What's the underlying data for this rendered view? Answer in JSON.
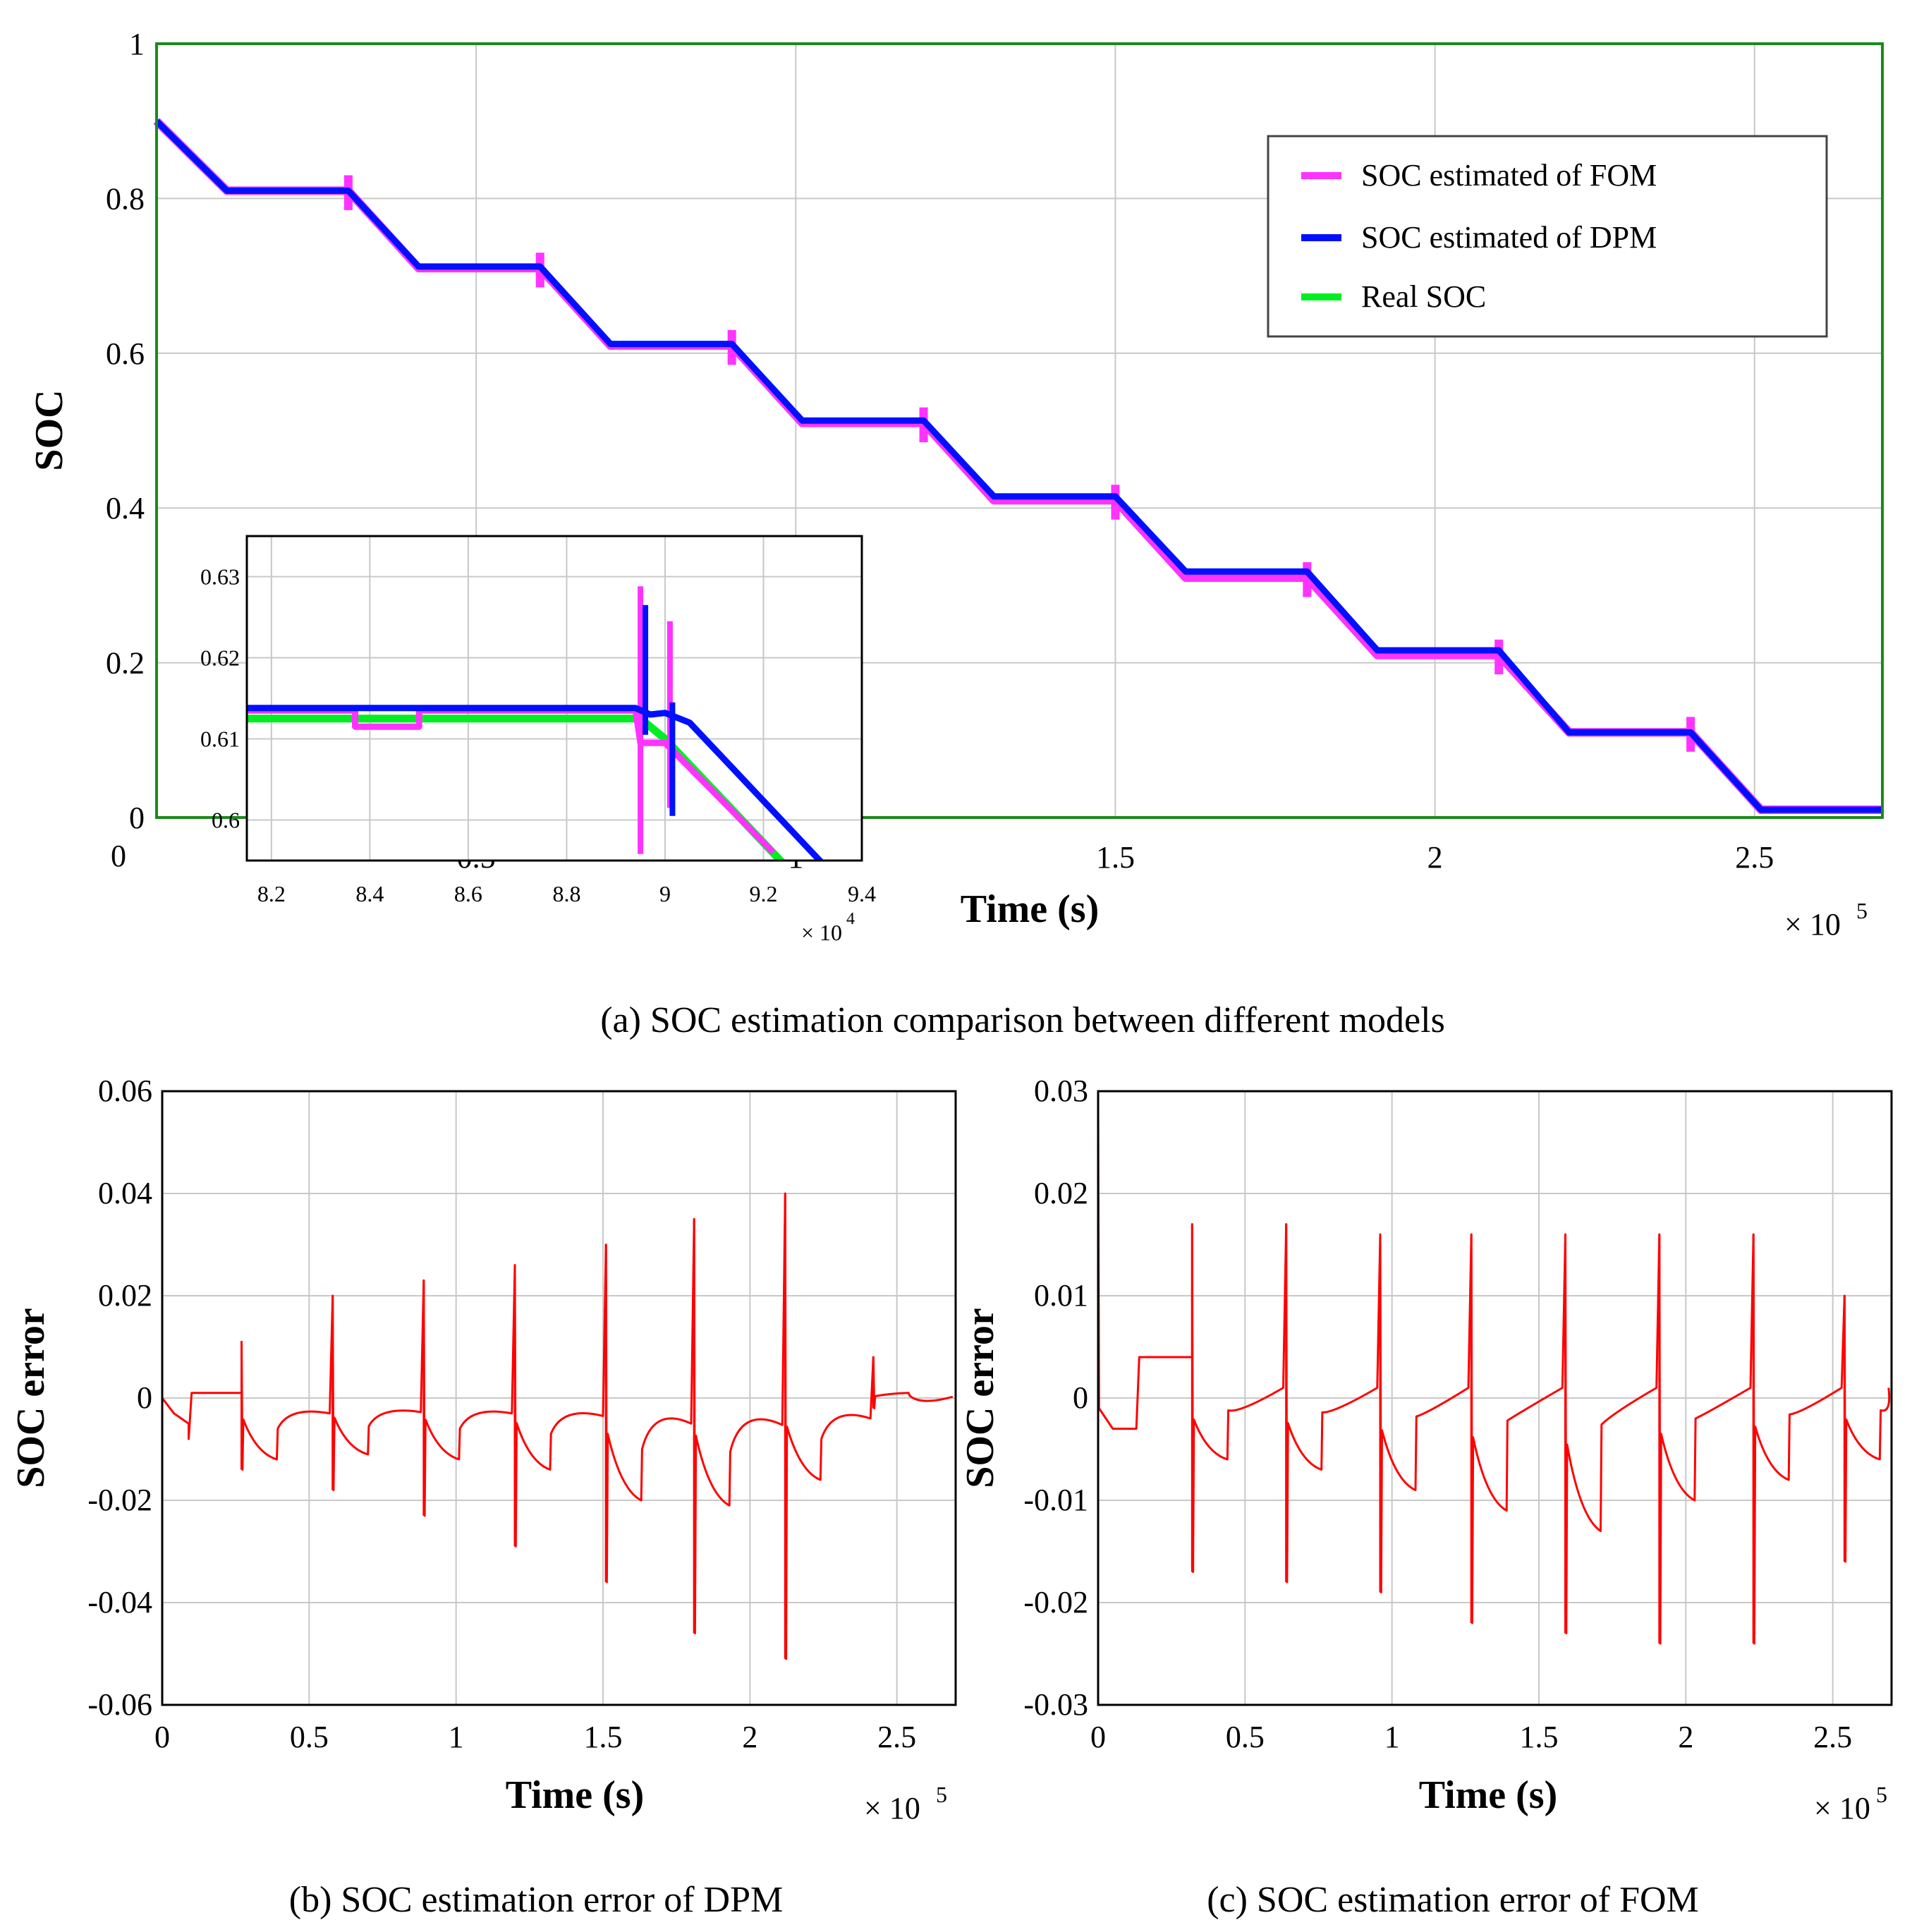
{
  "colors": {
    "fom": "#ff33ff",
    "dpm": "#0010ff",
    "real": "#00ee22",
    "error": "#ff0000"
  },
  "chart_data": [
    {
      "id": "a",
      "type": "line",
      "caption": "(a) SOC estimation comparison between different models",
      "xlabel": "Time (s)",
      "ylabel": "SOC",
      "x_multiplier": "× 10",
      "x_exponent": "5",
      "xlim": [
        0,
        2.7
      ],
      "ylim": [
        0,
        1
      ],
      "xticks": [
        "0.5",
        "1",
        "1.5",
        "2",
        "2.5"
      ],
      "x_origin_label": "0",
      "yticks": [
        "0",
        "0.2",
        "0.4",
        "0.6",
        "0.8",
        "1"
      ],
      "legend": [
        "SOC estimated of FOM",
        "SOC estimated of DPM",
        "Real SOC"
      ],
      "series": [
        {
          "name": "Real SOC",
          "x": [
            0,
            0.11,
            0.3,
            0.41,
            0.6,
            0.71,
            0.9,
            1.01,
            1.2,
            1.31,
            1.5,
            1.61,
            1.8,
            1.91,
            2.1,
            2.21,
            2.4,
            2.51,
            2.7
          ],
          "y": [
            0.9,
            0.81,
            0.81,
            0.71,
            0.71,
            0.61,
            0.61,
            0.51,
            0.51,
            0.41,
            0.41,
            0.31,
            0.31,
            0.21,
            0.21,
            0.11,
            0.11,
            0.01,
            0.01
          ]
        },
        {
          "name": "SOC estimated of FOM",
          "x": [
            0,
            0.11,
            0.3,
            0.41,
            0.6,
            0.71,
            0.9,
            1.01,
            1.2,
            1.31,
            1.5,
            1.61,
            1.8,
            1.91,
            2.1,
            2.21,
            2.4,
            2.51,
            2.7
          ],
          "y": [
            0.9,
            0.81,
            0.81,
            0.71,
            0.71,
            0.61,
            0.61,
            0.51,
            0.51,
            0.41,
            0.41,
            0.31,
            0.31,
            0.21,
            0.21,
            0.11,
            0.11,
            0.01,
            0.01
          ]
        },
        {
          "name": "SOC estimated of DPM",
          "x": [
            0,
            0.11,
            0.3,
            0.41,
            0.6,
            0.71,
            0.9,
            1.01,
            1.2,
            1.31,
            1.5,
            1.61,
            1.8,
            1.91,
            2.1,
            2.21,
            2.4,
            2.51,
            2.7
          ],
          "y": [
            0.9,
            0.81,
            0.81,
            0.712,
            0.712,
            0.612,
            0.612,
            0.513,
            0.513,
            0.415,
            0.415,
            0.318,
            0.318,
            0.216,
            0.216,
            0.11,
            0.11,
            0.01,
            0.01
          ]
        }
      ],
      "inset": {
        "xlim": [
          8.15,
          9.4
        ],
        "ylim": [
          0.595,
          0.635
        ],
        "xticks": [
          "8.2",
          "8.4",
          "8.6",
          "8.8",
          "9",
          "9.2",
          "9.4"
        ],
        "yticks": [
          "0.6",
          "0.61",
          "0.62",
          "0.63"
        ],
        "x_multiplier": "× 10",
        "x_exponent": "4",
        "series": [
          {
            "name": "Real SOC",
            "x": [
              8.15,
              8.95,
              9.0,
              9.25
            ],
            "y": [
              0.6125,
              0.6125,
              0.61,
              0.594
            ]
          },
          {
            "name": "SOC estimated of FOM",
            "x": [
              8.15,
              8.37,
              8.37,
              8.5,
              8.5,
              8.94,
              8.95,
              9.0,
              9.22
            ],
            "y": [
              0.6135,
              0.6135,
              0.6115,
              0.6115,
              0.6135,
              0.6135,
              0.6095,
              0.6095,
              0.596
            ]
          },
          {
            "name": "SOC estimated of DPM",
            "x": [
              8.15,
              8.94,
              8.97,
              9.0,
              9.05,
              9.33
            ],
            "y": [
              0.6138,
              0.6138,
              0.613,
              0.6132,
              0.612,
              0.594
            ]
          }
        ]
      }
    },
    {
      "id": "b",
      "type": "line",
      "caption": "(b) SOC estimation error of DPM",
      "xlabel": "Time (s)",
      "ylabel": "SOC error",
      "x_multiplier": "× 10",
      "x_exponent": "5",
      "xlim": [
        0,
        2.7
      ],
      "ylim": [
        -0.06,
        0.06
      ],
      "xticks": [
        "0",
        "0.5",
        "1",
        "1.5",
        "2",
        "2.5"
      ],
      "yticks": [
        "-0.06",
        "-0.04",
        "-0.02",
        "0",
        "0.02",
        "0.04",
        "0.06"
      ],
      "series": [
        {
          "name": "SOC error",
          "spikes": [
            {
              "x": 0.27,
              "top": 0.011,
              "bottom": -0.014,
              "end": -0.012
            },
            {
              "x": 0.58,
              "top": 0.02,
              "bottom": -0.018,
              "end": -0.011
            },
            {
              "x": 0.89,
              "top": 0.023,
              "bottom": -0.023,
              "end": -0.012
            },
            {
              "x": 1.2,
              "top": 0.026,
              "bottom": -0.029,
              "end": -0.014
            },
            {
              "x": 1.51,
              "top": 0.03,
              "bottom": -0.036,
              "end": -0.02
            },
            {
              "x": 1.81,
              "top": 0.035,
              "bottom": -0.046,
              "end": -0.021
            },
            {
              "x": 2.12,
              "top": 0.04,
              "bottom": -0.051,
              "end": -0.016
            },
            {
              "x": 2.42,
              "top": 0.008,
              "bottom": -0.002,
              "end": 0.001
            }
          ]
        }
      ]
    },
    {
      "id": "c",
      "type": "line",
      "caption": "(c) SOC estimation error of FOM",
      "xlabel": "Time (s)",
      "ylabel": "SOC error",
      "x_multiplier": "× 10",
      "x_exponent": "5",
      "xlim": [
        0,
        2.7
      ],
      "ylim": [
        -0.03,
        0.03
      ],
      "xticks": [
        "0",
        "0.5",
        "1",
        "1.5",
        "2",
        "2.5"
      ],
      "yticks": [
        "-0.03",
        "-0.02",
        "-0.01",
        "0",
        "0.01",
        "0.02",
        "0.03"
      ],
      "series": [
        {
          "name": "SOC error",
          "spikes": [
            {
              "x": 0.32,
              "top": 0.017,
              "bottom": -0.017,
              "end": -0.006
            },
            {
              "x": 0.64,
              "top": 0.017,
              "bottom": -0.018,
              "end": -0.007
            },
            {
              "x": 0.96,
              "top": 0.016,
              "bottom": -0.019,
              "end": -0.009
            },
            {
              "x": 1.27,
              "top": 0.016,
              "bottom": -0.022,
              "end": -0.011
            },
            {
              "x": 1.59,
              "top": 0.016,
              "bottom": -0.023,
              "end": -0.013
            },
            {
              "x": 1.91,
              "top": 0.016,
              "bottom": -0.024,
              "end": -0.01
            },
            {
              "x": 2.23,
              "top": 0.016,
              "bottom": -0.024,
              "end": -0.008
            },
            {
              "x": 2.54,
              "top": 0.01,
              "bottom": -0.016,
              "end": -0.006
            }
          ]
        }
      ]
    }
  ]
}
